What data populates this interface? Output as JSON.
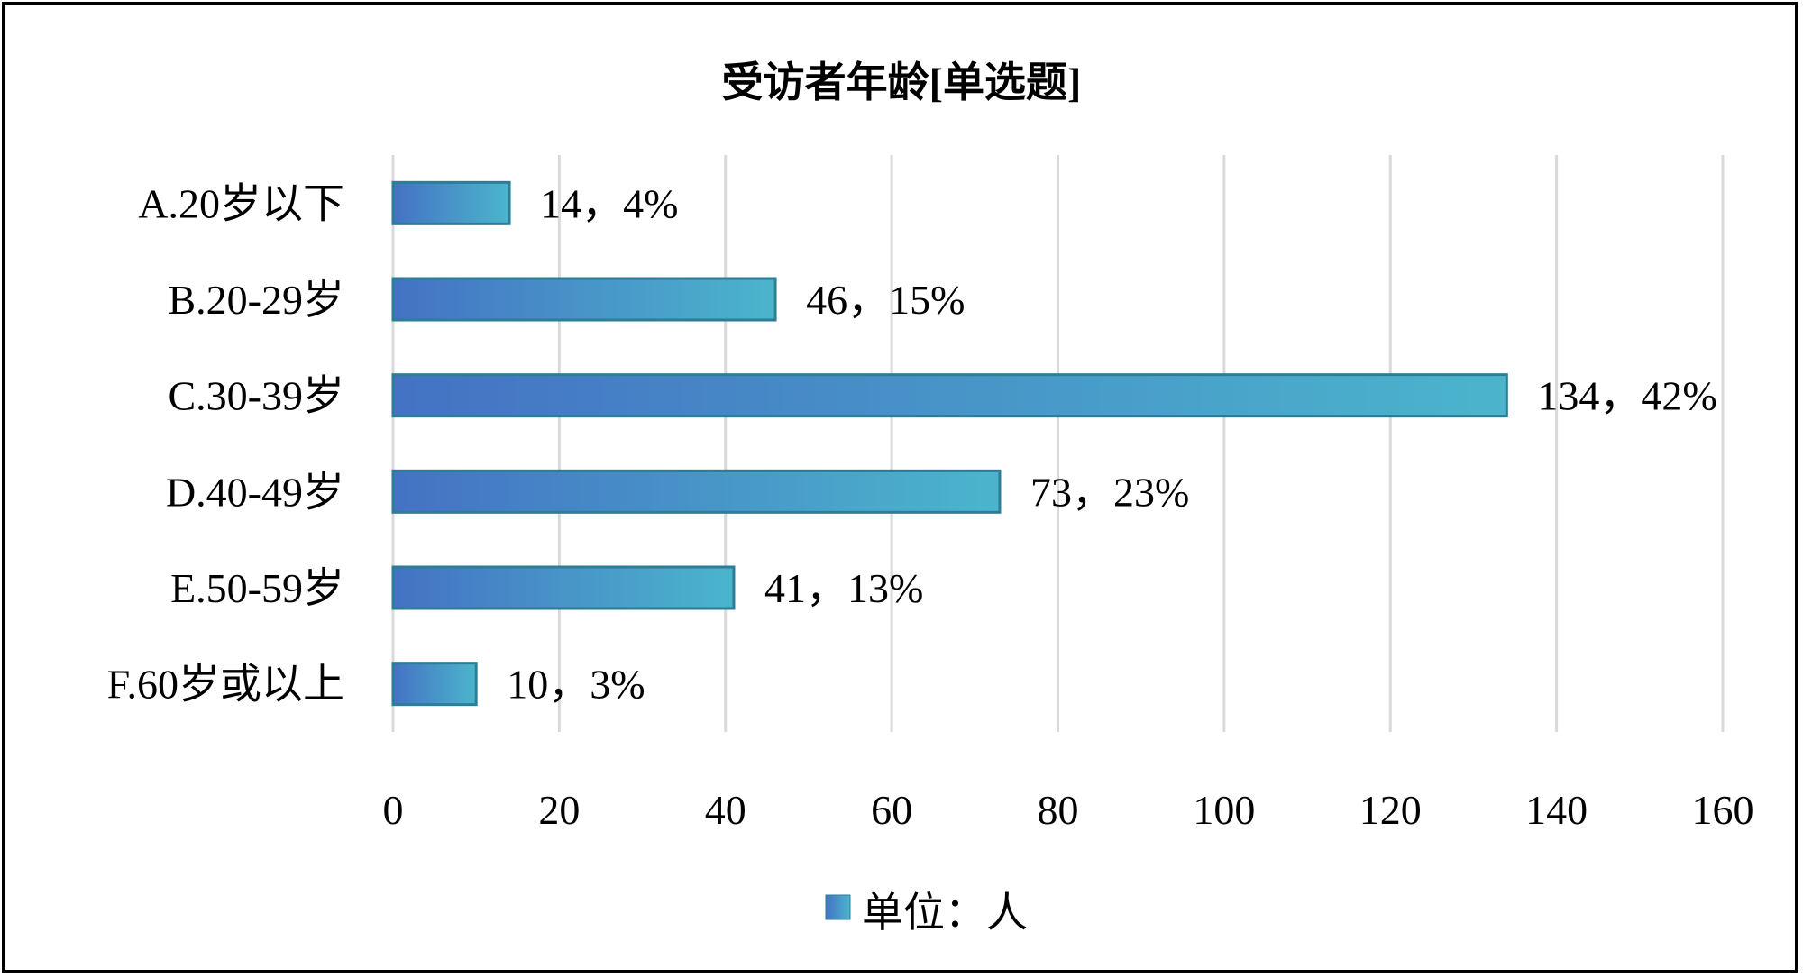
{
  "chart_data": {
    "type": "bar",
    "orientation": "horizontal",
    "title": "受访者年龄[单选题]",
    "categories": [
      "A.20岁以下",
      "B.20-29岁",
      "C.30-39岁",
      "D.40-49岁",
      "E.50-59岁",
      "F.60岁或以上"
    ],
    "series": [
      {
        "name": "单位：人",
        "values": [
          14,
          46,
          134,
          73,
          41,
          10
        ]
      }
    ],
    "data_labels": [
      "14，4%",
      "46，15%",
      "134，42%",
      "73，23%",
      "41，13%",
      "10，3%"
    ],
    "xlim": [
      0,
      160
    ],
    "xticks": [
      "0",
      "20",
      "40",
      "60",
      "80",
      "100",
      "120",
      "140",
      "160"
    ],
    "grid": true,
    "legend": "bottom",
    "colors": {
      "bar_start": "#4472C4",
      "bar_end": "#4BB5CC",
      "bar_border": "#2E7D96",
      "grid": "#D9D9D9"
    }
  }
}
